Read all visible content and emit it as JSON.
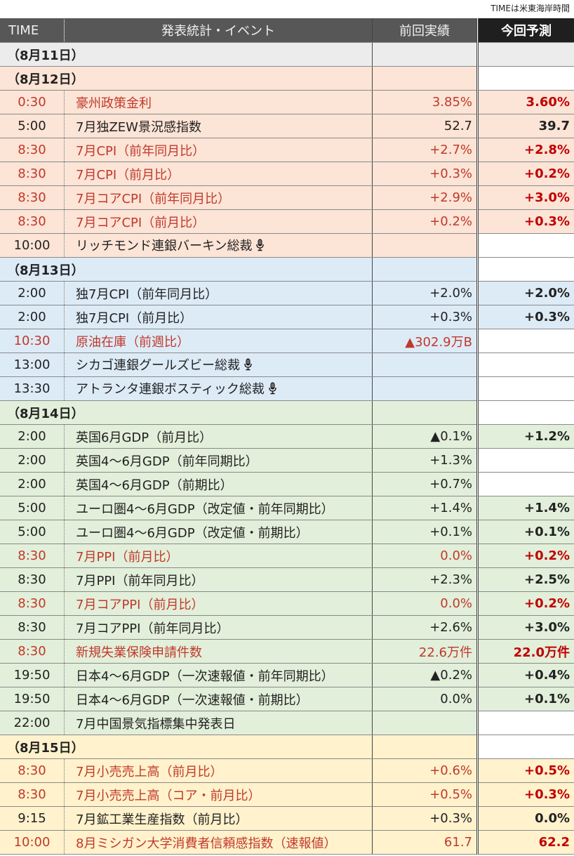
{
  "timezone_note": "TIMEは米東海岸時間",
  "header": {
    "time": "TIME",
    "event": "発表統計・イベント",
    "prev": "前回実績",
    "forecast": "今回予測"
  },
  "colors": {
    "header_bg": "#575757",
    "highlight_text": "#c0392b",
    "day11": "#ececec",
    "day12": "#fce4d6",
    "day13": "#ddebf7",
    "day14": "#e2efda",
    "day15": "#fff2cc"
  },
  "days": [
    {
      "label": "（8月11日）",
      "group": "d11",
      "rows": []
    },
    {
      "label": "（8月12日）",
      "group": "d12",
      "rows": [
        {
          "time": "0:30",
          "event": "豪州政策金利",
          "prev": "3.85%",
          "forecast": "3.60%",
          "highlight": true
        },
        {
          "time": "5:00",
          "event": "7月独ZEW景況感指数",
          "prev": "52.7",
          "forecast": "39.7",
          "highlight": false
        },
        {
          "time": "8:30",
          "event": "7月CPI（前年同月比）",
          "prev": "+2.7%",
          "forecast": "+2.8%",
          "highlight": true
        },
        {
          "time": "8:30",
          "event": "7月CPI（前月比）",
          "prev": "+0.3%",
          "forecast": "+0.2%",
          "highlight": true
        },
        {
          "time": "8:30",
          "event": "7月コアCPI（前年同月比）",
          "prev": "+2.9%",
          "forecast": "+3.0%",
          "highlight": true
        },
        {
          "time": "8:30",
          "event": "7月コアCPI（前月比）",
          "prev": "+0.2%",
          "forecast": "+0.3%",
          "highlight": true
        },
        {
          "time": "10:00",
          "event": "リッチモンド連銀バーキン総裁",
          "prev": "",
          "forecast": "",
          "highlight": false,
          "mic": true
        }
      ]
    },
    {
      "label": "（8月13日）",
      "group": "d13",
      "rows": [
        {
          "time": "2:00",
          "event": "独7月CPI（前年同月比）",
          "prev": "+2.0%",
          "forecast": "+2.0%",
          "highlight": false
        },
        {
          "time": "2:00",
          "event": "独7月CPI（前月比）",
          "prev": "+0.3%",
          "forecast": "+0.3%",
          "highlight": false
        },
        {
          "time": "10:30",
          "event": "原油在庫（前週比）",
          "prev": "▲302.9万B",
          "forecast": "",
          "highlight": true
        },
        {
          "time": "13:00",
          "event": "シカゴ連銀グールズビー総裁",
          "prev": "",
          "forecast": "",
          "highlight": false,
          "mic": true
        },
        {
          "time": "13:30",
          "event": "アトランタ連銀ボスティック総裁",
          "prev": "",
          "forecast": "",
          "highlight": false,
          "mic": true
        }
      ]
    },
    {
      "label": "（8月14日）",
      "group": "d14",
      "rows": [
        {
          "time": "2:00",
          "event": "英国6月GDP（前月比）",
          "prev": "▲0.1%",
          "forecast": "+1.2%",
          "highlight": false
        },
        {
          "time": "2:00",
          "event": "英国4～6月GDP（前年同期比）",
          "prev": "+1.3%",
          "forecast": "",
          "highlight": false
        },
        {
          "time": "2:00",
          "event": "英国4～6月GDP（前期比）",
          "prev": "+0.7%",
          "forecast": "",
          "highlight": false
        },
        {
          "time": "5:00",
          "event": "ユーロ圏4～6月GDP（改定値・前年同期比）",
          "prev": "+1.4%",
          "forecast": "+1.4%",
          "highlight": false
        },
        {
          "time": "5:00",
          "event": "ユーロ圏4～6月GDP（改定値・前期比）",
          "prev": "+0.1%",
          "forecast": "+0.1%",
          "highlight": false
        },
        {
          "time": "8:30",
          "event": "7月PPI（前月比）",
          "prev": "0.0%",
          "forecast": "+0.2%",
          "highlight": true
        },
        {
          "time": "8:30",
          "event": "7月PPI（前年同月比）",
          "prev": "+2.3%",
          "forecast": "+2.5%",
          "highlight": false
        },
        {
          "time": "8:30",
          "event": "7月コアPPI（前月比）",
          "prev": "0.0%",
          "forecast": "+0.2%",
          "highlight": true
        },
        {
          "time": "8:30",
          "event": "7月コアPPI（前年同月比）",
          "prev": "+2.6%",
          "forecast": "+3.0%",
          "highlight": false
        },
        {
          "time": "8:30",
          "event": "新規失業保険申請件数",
          "prev": "22.6万件",
          "forecast": "22.0万件",
          "highlight": true
        },
        {
          "time": "19:50",
          "event": "日本4～6月GDP（一次速報値・前年同期比）",
          "prev": "▲0.2%",
          "forecast": "+0.4%",
          "highlight": false
        },
        {
          "time": "19:50",
          "event": "日本4～6月GDP（一次速報値・前期比）",
          "prev": "0.0%",
          "forecast": "+0.1%",
          "highlight": false
        },
        {
          "time": "22:00",
          "event": "7月中国景気指標集中発表日",
          "prev": "",
          "forecast": "",
          "highlight": false
        }
      ]
    },
    {
      "label": "（8月15日）",
      "group": "d15",
      "rows": [
        {
          "time": "8:30",
          "event": "7月小売売上高（前月比）",
          "prev": "+0.6%",
          "forecast": "+0.5%",
          "highlight": true
        },
        {
          "time": "8:30",
          "event": "7月小売売上高（コア・前月比）",
          "prev": "+0.5%",
          "forecast": "+0.3%",
          "highlight": true
        },
        {
          "time": "9:15",
          "event": "7月鉱工業生産指数（前月比）",
          "prev": "+0.3%",
          "forecast": "0.0%",
          "highlight": false
        },
        {
          "time": "10:00",
          "event": "8月ミシガン大学消費者信頼感指数（速報値）",
          "prev": "61.7",
          "forecast": "62.2",
          "highlight": true
        }
      ]
    }
  ]
}
